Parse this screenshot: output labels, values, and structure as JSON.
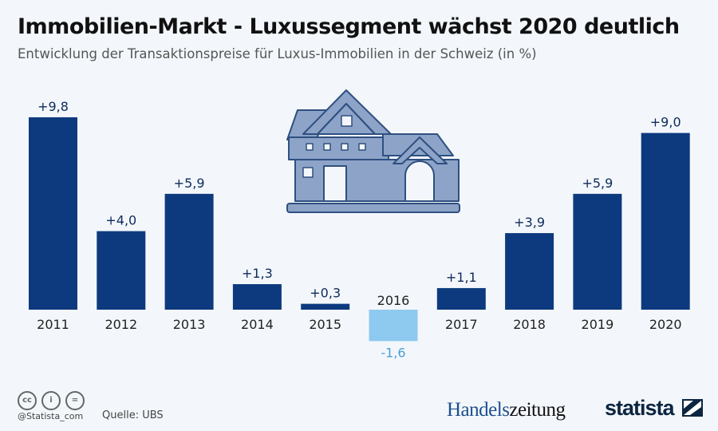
{
  "header": {
    "title": "Immobilien-Markt - Luxussegment wächst 2020 deutlich",
    "subtitle": "Entwicklung der Transaktionspreise für Luxus-Immobilien in der Schweiz (in %)"
  },
  "chart_data": {
    "type": "bar",
    "categories": [
      "2011",
      "2012",
      "2013",
      "2014",
      "2015",
      "2016",
      "2017",
      "2018",
      "2019",
      "2020"
    ],
    "values": [
      9.8,
      4.0,
      5.9,
      1.3,
      0.3,
      -1.6,
      1.1,
      3.9,
      5.9,
      9.0
    ],
    "data_labels": [
      "+9,8",
      "+4,0",
      "+5,9",
      "+1,3",
      "+0,3",
      "-1,6",
      "+1,1",
      "+3,9",
      "+5,9",
      "+9,0"
    ],
    "colors": {
      "positive": "#0d3a7e",
      "negative": "#8ec9f0",
      "positive_label": "#0d2a5c",
      "negative_label": "#4a9fd8"
    }
  },
  "footer": {
    "handle": "@Statista_com",
    "source": "Quelle: UBS",
    "partner_a": "Handels",
    "partner_b": "zeitung",
    "brand": "statista",
    "cc_icons": [
      "cc",
      "by",
      "nd"
    ]
  }
}
